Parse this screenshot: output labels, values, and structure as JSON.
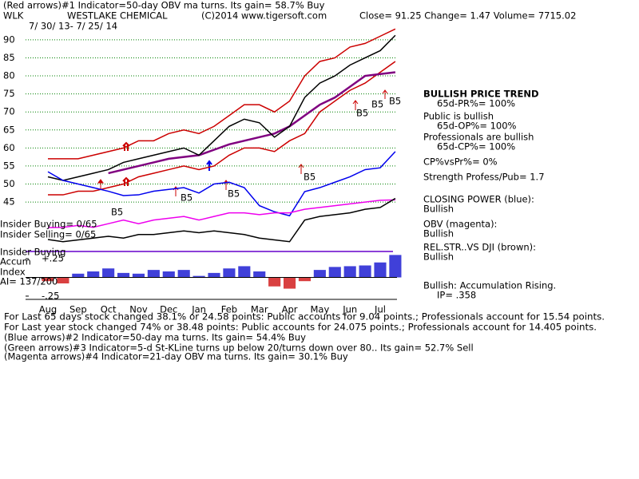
{
  "header": {
    "line1": "(Red arrows)#1 Indicator=50-day OBV ma turns. Its gain= 58.7% Buy",
    "symbol": "WLK",
    "company": "WESTLAKE CHEMICAL",
    "copyright": "(C)2014 www.tigersoft.com",
    "quote": "Close=  91.25  Change= 1.47 Volume= 7715.02",
    "dates": "7/ 30/ 13- 7/ 25/ 14"
  },
  "left_labels": [
    "Insider Buying= 0/65",
    "Insider Selling= 0/65",
    "Insider Buying",
    "Accum",
    "Index",
    "AI= 137/200"
  ],
  "annotations": [
    "B5",
    "B5",
    "B5",
    "B5",
    "B5",
    "B5",
    "B5"
  ],
  "right_panel": [
    "BULLISH PRICE TREND",
    "65d-PR%= 100%",
    "Public is bullish",
    "65d-OP%= 100%",
    "Professionals are bullish",
    "65d-CP%= 100%",
    "CP%vsPr%=  0%",
    "Strength Profess/Pub= 1.7",
    "CLOSING POWER (blue):",
    "Bullish",
    "OBV (magenta):",
    "Bullish",
    "REL.STR..VS DJI (brown):",
    "Bullish",
    "Bullish: Accumulation Rising.",
    "IP=  .358"
  ],
  "footer": [
    "For Last 65 days stock changed  38.1% or  24.58 points:  Public accounts for  9.04 points.;  Professionals account for  15.54 points.",
    "For Last year stock changed  74% or  38.48 points:  Public accounts for  24.075 points.;  Professionals account for  14.405 points.",
    "(Blue arrows)#2 Indicator=50-day ma turns. Its gain= 54.4% Buy",
    "(Green arrows)#3 Indicator=5-d St-KLine turns up below 20/turns down over 80.. Its gain= 52.7% Sell",
    "(Magenta arrows)#4 Indicator=21-day OBV ma turns. Its gain= 30.1% Buy"
  ],
  "chart_data": [
    {
      "type": "line",
      "categories": [
        "Aug",
        null,
        "Sep",
        null,
        "Oct",
        null,
        "Nov",
        null,
        "Dec",
        null,
        "Jan",
        null,
        "Feb",
        null,
        "Mar",
        null,
        "Apr",
        null,
        "May",
        null,
        "Jun",
        null,
        "Jul",
        null
      ],
      "ylim": [
        18,
        93.3
      ],
      "yticks": [
        45,
        50,
        55,
        60,
        65,
        70,
        75,
        80,
        85,
        90
      ],
      "grid": true,
      "grid_color": "#008000",
      "series": [
        {
          "color": "#cc0000",
          "values": [
            57,
            57,
            57,
            58,
            59,
            60,
            62,
            62,
            64,
            65,
            64,
            66,
            69,
            72,
            72,
            70,
            73,
            80,
            84,
            85,
            88,
            89,
            91,
            93
          ]
        },
        {
          "color": "#cc0000",
          "values": [
            47,
            47,
            48,
            48,
            49,
            50,
            52,
            53,
            54,
            55,
            54,
            55,
            58,
            60,
            60,
            59,
            62,
            64,
            70,
            73,
            76,
            78,
            81,
            84
          ]
        },
        {
          "color": "#800080",
          "values": [
            null,
            null,
            null,
            null,
            53,
            54,
            55,
            56,
            57,
            57.5,
            58,
            59.5,
            61,
            62,
            63,
            64,
            66,
            69,
            72,
            74,
            77,
            80,
            80.5,
            81
          ]
        },
        {
          "color": "#000000",
          "values": [
            52,
            51,
            52,
            53,
            54,
            56,
            57,
            58,
            59,
            60,
            58,
            62,
            66,
            68,
            67,
            63,
            66,
            74,
            78,
            80,
            83,
            85,
            87,
            91.25
          ]
        },
        {
          "color": "#0000ee",
          "values": [
            53.4,
            51,
            50,
            49,
            48,
            46.8,
            47,
            48,
            48.5,
            49,
            47.5,
            50,
            50.5,
            49,
            44,
            42.3,
            41.2,
            47.9,
            49,
            50.5,
            52,
            54,
            54.5,
            59
          ]
        },
        {
          "color": "#ee00ee",
          "values": [
            37.9,
            38,
            38.5,
            38,
            39,
            40,
            39,
            40,
            40.5,
            41,
            40,
            41,
            42,
            42,
            41.5,
            42,
            42,
            43,
            43.5,
            44,
            44.5,
            45,
            45.5,
            45.6
          ]
        },
        {
          "color": "#000000",
          "values": [
            34.6,
            34,
            34.5,
            35,
            35.5,
            35,
            36,
            36,
            36.5,
            37,
            36.5,
            37,
            36.5,
            36,
            35,
            34.5,
            34,
            40,
            41,
            41.5,
            42,
            43,
            43.5,
            46
          ]
        }
      ]
    },
    {
      "type": "bar",
      "ylim": [
        -0.4,
        0.4
      ],
      "yticks": [
        {
          "value": 0.25,
          "label": "+.25"
        },
        {
          "value": -0.25,
          "label": "-.25"
        }
      ],
      "colors": {
        "positive": "#0000cc",
        "negative": "#cc0000"
      },
      "values": [
        -0.05,
        -0.08,
        0.05,
        0.08,
        0.12,
        0.06,
        0.05,
        0.1,
        0.08,
        0.1,
        0.02,
        0.06,
        0.12,
        0.15,
        0.08,
        -0.12,
        -0.15,
        -0.05,
        0.1,
        0.14,
        0.15,
        0.16,
        0.2,
        0.3
      ]
    }
  ]
}
